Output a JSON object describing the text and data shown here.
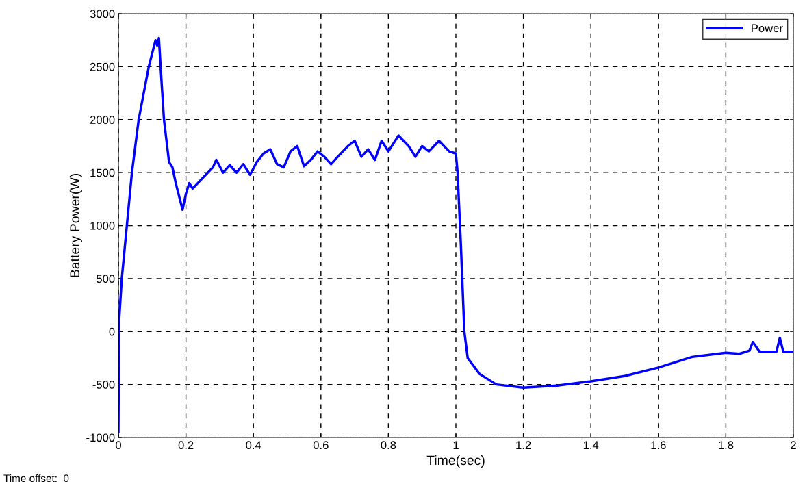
{
  "chart_data": {
    "type": "line",
    "xlabel": "Time(sec)",
    "ylabel": "Battery Power(W)",
    "xlim": [
      0,
      2
    ],
    "ylim": [
      -1000,
      3000
    ],
    "xticks": [
      0,
      0.2,
      0.4,
      0.6,
      0.8,
      1,
      1.2,
      1.4,
      1.6,
      1.8,
      2
    ],
    "yticks": [
      -1000,
      -500,
      0,
      500,
      1000,
      1500,
      2000,
      2500,
      3000
    ],
    "grid": true,
    "legend": "top right",
    "line_style": "solid",
    "marker": "none",
    "annotations": [
      "Time offset:  0"
    ],
    "series": [
      {
        "name": "Power",
        "color": "#0000ff",
        "x": [
          0,
          0.002,
          0.01,
          0.025,
          0.04,
          0.06,
          0.09,
          0.11,
          0.115,
          0.12,
          0.125,
          0.135,
          0.15,
          0.16,
          0.17,
          0.19,
          0.2,
          0.21,
          0.22,
          0.25,
          0.28,
          0.29,
          0.31,
          0.33,
          0.35,
          0.37,
          0.39,
          0.41,
          0.43,
          0.45,
          0.47,
          0.49,
          0.51,
          0.53,
          0.55,
          0.57,
          0.59,
          0.61,
          0.63,
          0.65,
          0.68,
          0.7,
          0.72,
          0.74,
          0.76,
          0.78,
          0.8,
          0.83,
          0.86,
          0.88,
          0.9,
          0.92,
          0.95,
          0.98,
          1.0,
          1.005,
          1.015,
          1.025,
          1.035,
          1.07,
          1.12,
          1.2,
          1.3,
          1.4,
          1.5,
          1.6,
          1.7,
          1.8,
          1.84,
          1.87,
          1.88,
          1.9,
          1.95,
          1.96,
          1.97,
          2.0
        ],
        "values": [
          -950,
          100,
          500,
          1000,
          1500,
          2000,
          2500,
          2750,
          2700,
          2770,
          2500,
          2000,
          1600,
          1550,
          1400,
          1150,
          1300,
          1400,
          1350,
          1450,
          1550,
          1620,
          1500,
          1570,
          1500,
          1580,
          1480,
          1600,
          1680,
          1720,
          1580,
          1550,
          1700,
          1750,
          1560,
          1620,
          1700,
          1650,
          1580,
          1650,
          1750,
          1800,
          1650,
          1720,
          1620,
          1800,
          1700,
          1850,
          1750,
          1650,
          1750,
          1700,
          1800,
          1700,
          1680,
          1500,
          800,
          0,
          -250,
          -400,
          -500,
          -530,
          -510,
          -470,
          -420,
          -340,
          -240,
          -200,
          -210,
          -180,
          -100,
          -190,
          -190,
          -60,
          -190,
          -190
        ]
      }
    ]
  }
}
